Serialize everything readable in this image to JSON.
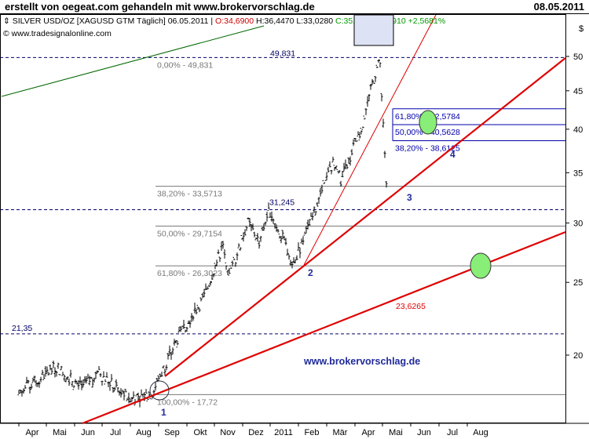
{
  "header": {
    "title": "erstellt von oegeat.com gehandeln mit www.brokervorschlag.de",
    "date": "08.05.2011"
  },
  "info_bar": {
    "symbol": "SILVER USD/OZ [XAGUSD GTM  Täglich] 06.05.2011",
    "open": "O:34,6900",
    "high": "H:36,4470",
    "low": "L:33,0280",
    "close": "C:35,5860",
    "change": "+0,8910",
    "change_pct": "+2,5681%",
    "copyright": "© www.tradesignalonline.com",
    "currency": "$"
  },
  "colors": {
    "trendline": "#e00000",
    "fib_gray": "#777777",
    "fib_blue": "#0000aa",
    "dashed": "#000066",
    "green_line": "#006600",
    "ellipse_fill": "#88ee77",
    "change_green": "#009900",
    "open_red": "#cc0000"
  },
  "chart_data": {
    "type": "ohlc",
    "symbol": "SILVER USD/OZ",
    "y_axis": {
      "ticks": [
        20,
        25,
        30,
        35,
        40,
        45,
        50
      ],
      "range": [
        16,
        51
      ],
      "scale": "log"
    },
    "x_axis": {
      "ticks": [
        "Apr",
        "Mai",
        "Jun",
        "Jul",
        "Aug",
        "Sep",
        "Okt",
        "Nov",
        "Dez",
        "2011",
        "Feb",
        "Mär",
        "Apr",
        "Mai",
        "Jun",
        "Jul",
        "Aug"
      ]
    },
    "price_path": [
      {
        "date": "2010-04-01",
        "price": 17.8
      },
      {
        "date": "2010-05-12",
        "price": 19.3
      },
      {
        "date": "2010-06-08",
        "price": 18.1
      },
      {
        "date": "2010-06-28",
        "price": 18.9
      },
      {
        "date": "2010-07-28",
        "price": 17.6
      },
      {
        "date": "2010-08-25",
        "price": 17.72
      },
      {
        "date": "2010-09-25",
        "price": 21.5
      },
      {
        "date": "2010-10-20",
        "price": 23.8
      },
      {
        "date": "2010-11-10",
        "price": 28.0
      },
      {
        "date": "2010-11-17",
        "price": 25.5
      },
      {
        "date": "2010-12-07",
        "price": 30.0
      },
      {
        "date": "2010-12-20",
        "price": 28.3
      },
      {
        "date": "2010-12-31",
        "price": 31.245
      },
      {
        "date": "2011-01-27",
        "price": 26.4
      },
      {
        "date": "2011-02-15",
        "price": 30.5
      },
      {
        "date": "2011-03-08",
        "price": 36.0
      },
      {
        "date": "2011-03-17",
        "price": 34.2
      },
      {
        "date": "2011-04-08",
        "price": 40.0
      },
      {
        "date": "2011-04-28",
        "price": 49.831
      },
      {
        "date": "2011-05-05",
        "price": 33.5
      },
      {
        "date": "2011-05-06",
        "price": 35.586
      }
    ],
    "fib_retracement_long": [
      {
        "label": "0,00% - 49,831",
        "value": 49.831
      },
      {
        "label": "38,20% - 33,5713",
        "value": 33.5713
      },
      {
        "label": "50,00% - 29,7154",
        "value": 29.7154
      },
      {
        "label": "61,80% - 26,3023",
        "value": 26.3023
      },
      {
        "label": "100,00% - 17,72",
        "value": 17.72
      }
    ],
    "fib_retracement_short": [
      {
        "label": "61,80% - 42,5784",
        "value": 42.5784
      },
      {
        "label": "50,00% - 40,5628",
        "value": 40.5628
      },
      {
        "label": "38,20% - 38,6125",
        "value": 38.6125
      }
    ],
    "horizontal_levels": [
      {
        "label": "49,831",
        "value": 49.831
      },
      {
        "label": "31,245",
        "value": 31.245
      },
      {
        "label": "21,35",
        "value": 21.35
      }
    ],
    "trendline_labels": [
      {
        "label": "23,6265",
        "value": 23.6265
      }
    ],
    "points": [
      {
        "label": "1",
        "date": "2010-08-25",
        "value": 17.72
      },
      {
        "label": "2",
        "date": "2011-01-27",
        "value": 26.4
      },
      {
        "label": "3",
        "date": "2011-05-05",
        "value": 33.0
      },
      {
        "label": "4",
        "date": "2011-05-30",
        "value": 38.0
      }
    ],
    "watermark": "www.brokervorschlag.de"
  }
}
